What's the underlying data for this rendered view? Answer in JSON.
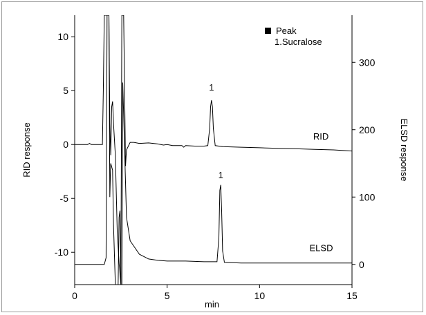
{
  "chart_data": {
    "type": "line",
    "title": "",
    "xlabel": "min",
    "ylabel_left": "RID response",
    "ylabel_right": "ELSD response",
    "xlim": [
      0,
      15
    ],
    "ylim_left": [
      -13,
      12
    ],
    "ylim_right": [
      -30,
      370
    ],
    "x_ticks": [
      "0",
      "5",
      "10",
      "15"
    ],
    "y_left_ticks": [
      "10",
      "5",
      "0",
      "-5",
      "-10"
    ],
    "y_right_ticks": [
      "300",
      "200",
      "100",
      "0"
    ],
    "legend": {
      "marker": "■",
      "title": "Peak",
      "items": [
        "1.Sucralose"
      ]
    },
    "series": [
      {
        "name": "RID",
        "axis": "left",
        "points": [
          [
            0,
            0
          ],
          [
            0.7,
            0
          ],
          [
            0.8,
            0.1
          ],
          [
            0.9,
            0
          ],
          [
            1.5,
            0
          ],
          [
            1.55,
            5
          ],
          [
            1.6,
            12
          ],
          [
            1.7,
            12
          ],
          [
            1.8,
            12
          ],
          [
            1.85,
            12
          ],
          [
            1.9,
            2
          ],
          [
            1.95,
            -1
          ],
          [
            2.0,
            3.5
          ],
          [
            2.05,
            4
          ],
          [
            2.1,
            2
          ],
          [
            2.2,
            -1
          ],
          [
            2.3,
            -8
          ],
          [
            2.4,
            -11
          ],
          [
            2.5,
            -13
          ],
          [
            2.55,
            12
          ],
          [
            2.65,
            12
          ],
          [
            2.7,
            5
          ],
          [
            2.75,
            -2
          ],
          [
            2.8,
            -0.5
          ],
          [
            3.0,
            0.2
          ],
          [
            3.2,
            0.2
          ],
          [
            3.5,
            0.1
          ],
          [
            4.0,
            0.15
          ],
          [
            4.5,
            0.05
          ],
          [
            4.8,
            -0.05
          ],
          [
            5.0,
            0.0
          ],
          [
            5.3,
            -0.1
          ],
          [
            5.8,
            -0.1
          ],
          [
            5.9,
            -0.25
          ],
          [
            6.0,
            -0.1
          ],
          [
            6.5,
            -0.15
          ],
          [
            7.0,
            -0.15
          ],
          [
            7.2,
            -0.1
          ],
          [
            7.3,
            1.5
          ],
          [
            7.35,
            3.5
          ],
          [
            7.4,
            4.1
          ],
          [
            7.45,
            3.5
          ],
          [
            7.5,
            1.5
          ],
          [
            7.6,
            -0.1
          ],
          [
            8.0,
            -0.2
          ],
          [
            9.0,
            -0.25
          ],
          [
            10.0,
            -0.3
          ],
          [
            11.0,
            -0.35
          ],
          [
            12.0,
            -0.4
          ],
          [
            13.0,
            -0.45
          ],
          [
            14.0,
            -0.5
          ],
          [
            15.0,
            -0.6
          ]
        ],
        "peak_label": "1"
      },
      {
        "name": "ELSD",
        "axis": "right",
        "points": [
          [
            0,
            0
          ],
          [
            1.5,
            0
          ],
          [
            1.6,
            0
          ],
          [
            1.7,
            10
          ],
          [
            1.75,
            370
          ],
          [
            1.85,
            370
          ],
          [
            1.9,
            100
          ],
          [
            1.95,
            150
          ],
          [
            2.05,
            140
          ],
          [
            2.1,
            60
          ],
          [
            2.2,
            -30
          ],
          [
            2.35,
            -30
          ],
          [
            2.4,
            70
          ],
          [
            2.45,
            80
          ],
          [
            2.5,
            -30
          ],
          [
            2.55,
            -30
          ],
          [
            2.6,
            270
          ],
          [
            2.7,
            170
          ],
          [
            2.8,
            70
          ],
          [
            3.0,
            35
          ],
          [
            3.5,
            15
          ],
          [
            4.0,
            8
          ],
          [
            4.5,
            6
          ],
          [
            5.0,
            5
          ],
          [
            6.0,
            5
          ],
          [
            7.0,
            4
          ],
          [
            7.5,
            4
          ],
          [
            7.7,
            4
          ],
          [
            7.8,
            40
          ],
          [
            7.85,
            110
          ],
          [
            7.9,
            118
          ],
          [
            7.95,
            80
          ],
          [
            8.0,
            20
          ],
          [
            8.1,
            3
          ],
          [
            9.0,
            2
          ],
          [
            10.0,
            2
          ],
          [
            11.0,
            2
          ],
          [
            12.0,
            2
          ],
          [
            13.0,
            2
          ],
          [
            14.0,
            2
          ],
          [
            15.0,
            2
          ]
        ],
        "peak_label": "1"
      }
    ]
  }
}
